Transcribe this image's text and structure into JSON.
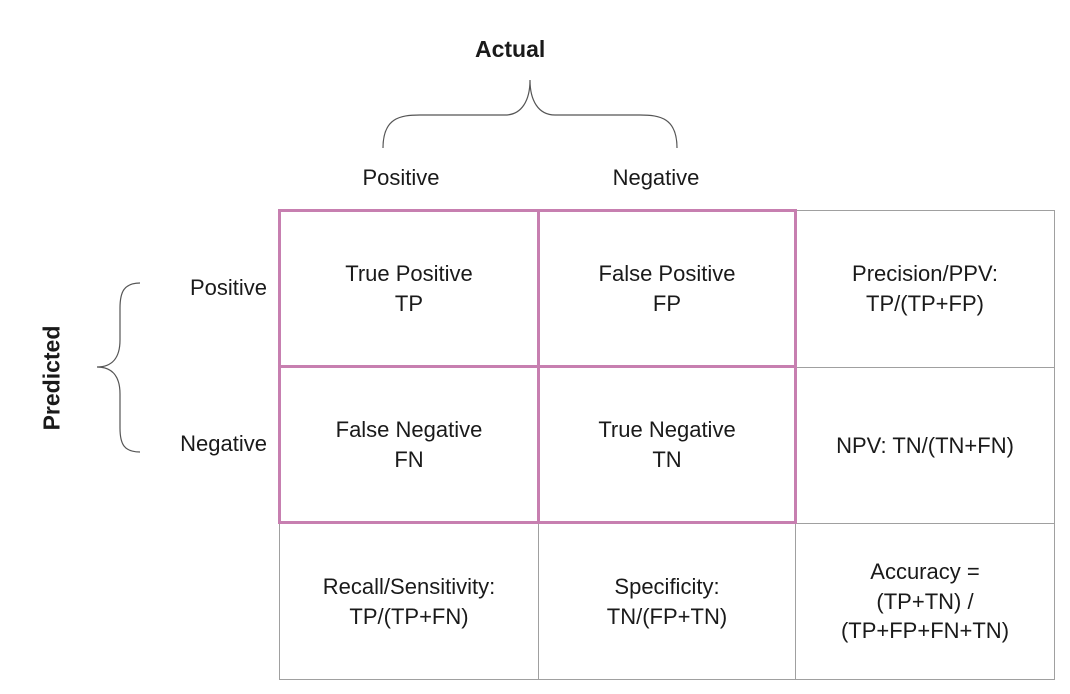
{
  "actual_label": "Actual",
  "predicted_label": "Predicted",
  "columns": {
    "positive": "Positive",
    "negative": "Negative"
  },
  "rows": {
    "positive": "Positive",
    "negative": "Negative"
  },
  "matrix": {
    "tp": {
      "line1": "True Positive",
      "line2": "TP"
    },
    "fp": {
      "line1": "False Positive",
      "line2": "FP"
    },
    "fn": {
      "line1": "False Negative",
      "line2": "FN"
    },
    "tn": {
      "line1": "True Negative",
      "line2": "TN"
    }
  },
  "metrics": {
    "precision": {
      "line1": "Precision/PPV:",
      "line2": "TP/(TP+FP)"
    },
    "npv": {
      "line1": "NPV: TN/(TN+FN)"
    },
    "recall": {
      "line1": "Recall/Sensitivity:",
      "line2": "TP/(TP+FN)"
    },
    "specificity": {
      "line1": "Specificity:",
      "line2": "TN/(FP+TN)"
    },
    "accuracy": {
      "line1": "Accuracy =",
      "line2": "(TP+TN) /",
      "line3": "(TP+FP+FN+TN)"
    }
  },
  "colors": {
    "highlight_border": "#c77fb0",
    "grid_border": "#a0a0a0"
  }
}
